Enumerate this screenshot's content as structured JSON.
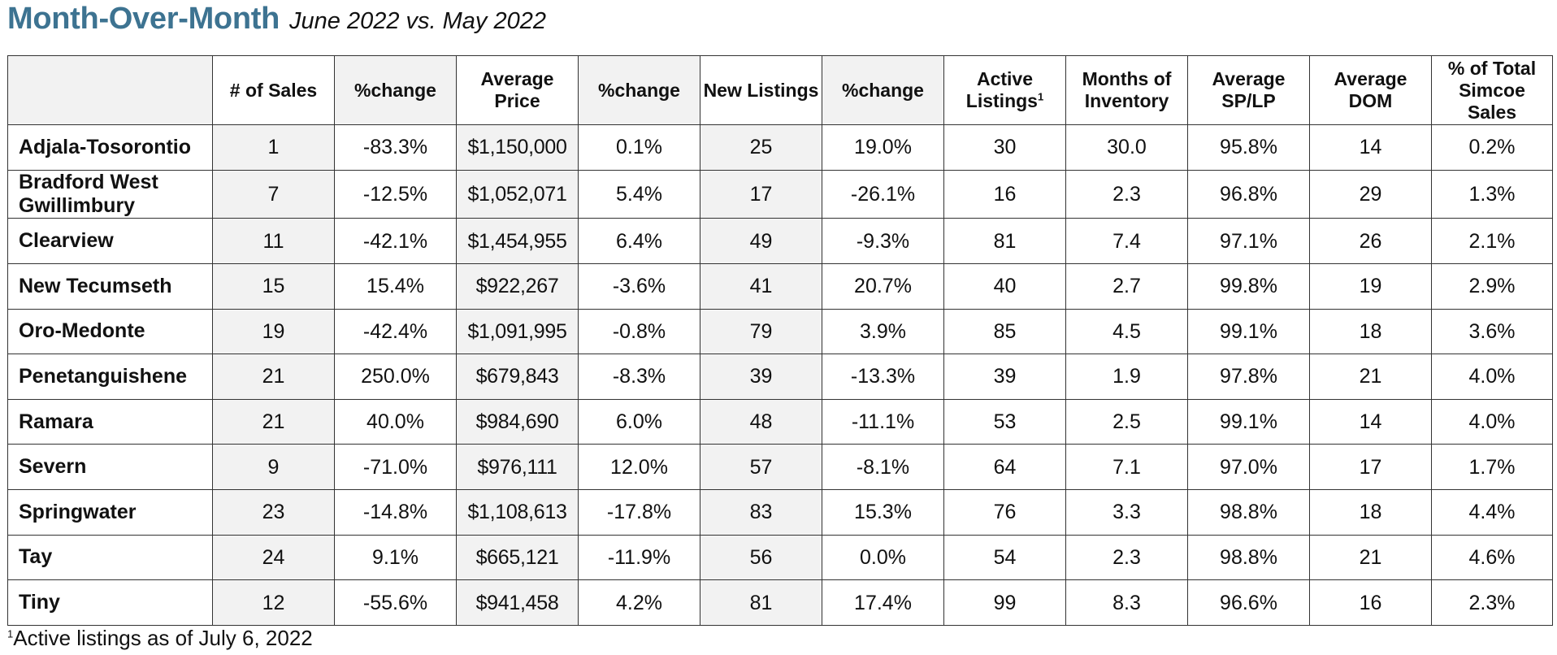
{
  "title": {
    "main": "Month-Over-Month",
    "sub": "June 2022 vs. May 2022"
  },
  "columns": [
    {
      "label": "",
      "footnote": ""
    },
    {
      "label": "# of Sales",
      "footnote": ""
    },
    {
      "label": "%change",
      "footnote": ""
    },
    {
      "label": "Average Price",
      "footnote": ""
    },
    {
      "label": "%change",
      "footnote": ""
    },
    {
      "label": "New Listings",
      "footnote": ""
    },
    {
      "label": "%change",
      "footnote": ""
    },
    {
      "label": "Active Listings",
      "footnote": "1"
    },
    {
      "label": "Months of Inventory",
      "footnote": ""
    },
    {
      "label": "Average SP/LP",
      "footnote": ""
    },
    {
      "label": "Average DOM",
      "footnote": ""
    },
    {
      "label": "% of Total Simcoe Sales",
      "footnote": ""
    }
  ],
  "rows": [
    [
      "Adjala-Tosorontio",
      "1",
      "-83.3%",
      "$1,150,000",
      "0.1%",
      "25",
      "19.0%",
      "30",
      "30.0",
      "95.8%",
      "14",
      "0.2%"
    ],
    [
      "Bradford West Gwillimbury",
      "7",
      "-12.5%",
      "$1,052,071",
      "5.4%",
      "17",
      "-26.1%",
      "16",
      "2.3",
      "96.8%",
      "29",
      "1.3%"
    ],
    [
      "Clearview",
      "11",
      "-42.1%",
      "$1,454,955",
      "6.4%",
      "49",
      "-9.3%",
      "81",
      "7.4",
      "97.1%",
      "26",
      "2.1%"
    ],
    [
      "New Tecumseth",
      "15",
      "15.4%",
      "$922,267",
      "-3.6%",
      "41",
      "20.7%",
      "40",
      "2.7",
      "99.8%",
      "19",
      "2.9%"
    ],
    [
      "Oro-Medonte",
      "19",
      "-42.4%",
      "$1,091,995",
      "-0.8%",
      "79",
      "3.9%",
      "85",
      "4.5",
      "99.1%",
      "18",
      "3.6%"
    ],
    [
      "Penetanguishene",
      "21",
      "250.0%",
      "$679,843",
      "-8.3%",
      "39",
      "-13.3%",
      "39",
      "1.9",
      "97.8%",
      "21",
      "4.0%"
    ],
    [
      "Ramara",
      "21",
      "40.0%",
      "$984,690",
      "6.0%",
      "48",
      "-11.1%",
      "53",
      "2.5",
      "99.1%",
      "14",
      "4.0%"
    ],
    [
      "Severn",
      "9",
      "-71.0%",
      "$976,111",
      "12.0%",
      "57",
      "-8.1%",
      "64",
      "7.1",
      "97.0%",
      "17",
      "1.7%"
    ],
    [
      "Springwater",
      "23",
      "-14.8%",
      "$1,108,613",
      "-17.8%",
      "83",
      "15.3%",
      "76",
      "3.3",
      "98.8%",
      "18",
      "4.4%"
    ],
    [
      "Tay",
      "24",
      "9.1%",
      "$665,121",
      "-11.9%",
      "56",
      "0.0%",
      "54",
      "2.3",
      "98.8%",
      "21",
      "4.6%"
    ],
    [
      "Tiny",
      "12",
      "-55.6%",
      "$941,458",
      "4.2%",
      "81",
      "17.4%",
      "99",
      "8.3",
      "96.6%",
      "16",
      "2.3%"
    ]
  ],
  "footnote": {
    "marker": "1",
    "text": "Active listings as of July 6, 2022"
  },
  "colors": {
    "title": "#3d7391",
    "shaded_cell": "#f2f2f2",
    "border": "#333333"
  }
}
